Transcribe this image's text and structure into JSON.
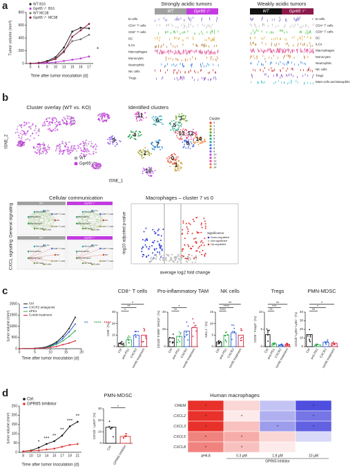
{
  "figure": {
    "panel_labels": [
      "a",
      "b",
      "c",
      "d"
    ],
    "panel_a": {
      "growth": {
        "type": "line",
        "ylabel": "Tumor volume (mm³)",
        "xlabel": "Time after tumor inoculation (d)",
        "categories": [
          "0",
          "6",
          "8",
          "10",
          "13",
          "15",
          "16",
          "17"
        ],
        "ylim": [
          0,
          800
        ],
        "yticks": [
          0,
          200,
          400,
          600,
          800
        ],
        "series": [
          {
            "name": "WT B16",
            "color": "#222222",
            "values": [
              0,
              10,
              40,
              100,
              250,
              500,
              560,
              550
            ]
          },
          {
            "name": "Gpr65⁻/⁻ B16",
            "color": "#c33be0",
            "values": [
              0,
              5,
              10,
              20,
              40,
              60,
              80,
              110
            ]
          },
          {
            "name": "WT MC38",
            "color": "#777777",
            "values": [
              0,
              10,
              30,
              80,
              200,
              350,
              380,
              450
            ]
          },
          {
            "name": "Gpr65⁻/⁻ MC38",
            "color": "#8b1a4a",
            "values": [
              0,
              10,
              30,
              70,
              180,
              420,
              520,
              620
            ]
          }
        ],
        "annotation": "*"
      },
      "heatmap": {
        "groups": [
          "Strongly acidic tumors",
          "Weakly acidic tumors"
        ],
        "columns": [
          "WT",
          "Gpr65⁻/⁻",
          "WT",
          "Gpr65⁻/⁻"
        ],
        "column_colors": [
          "#a0a0a0",
          "#c33be0",
          "#111111",
          "#8b1a4a"
        ],
        "rows_left": [
          "B cells",
          "CD4⁺ T cells",
          "CD8⁺ T cells",
          "DC",
          "ILCs",
          "Macrophages",
          "Monocytes",
          "Neutrophils",
          "NK cells",
          "Tregs"
        ],
        "rows_right": [
          "B cells",
          "CD4⁺ T cells",
          "CD8⁺ T cells",
          "DC",
          "ILCs",
          "Macrophages",
          "Monocytes",
          "Neutrophils",
          "NK cells",
          "Tregs",
          "Mast cells and Basophils"
        ],
        "row_colors": [
          "#7b61c7",
          "#b0b0b0",
          "#3fbf3f",
          "#e0a020",
          "#b07020",
          "#e05a9a",
          "#d08040",
          "#2a7ad0",
          "#c02020",
          "#8040c0",
          "#40c0d0"
        ]
      }
    },
    "panel_b": {
      "overlay_title": "Cluster overlay (WT vs. KO)",
      "clusters_title": "Identified clusters",
      "ylabel": "tSNE_2",
      "xlabel": "tSNE_1",
      "legend": [
        "WT",
        "Gpr65⁻/⁻"
      ],
      "legend_colors": [
        "#aaaaaa",
        "#c33be0"
      ],
      "cluster_legend_title": "Cluster",
      "clusters": [
        "0",
        "1",
        "2",
        "3",
        "4",
        "5",
        "6",
        "7",
        "8",
        "9",
        "10",
        "11",
        "12",
        "13",
        "14"
      ],
      "cluster_colors": [
        "#e8412a",
        "#c79a2a",
        "#9a9a1a",
        "#5da82a",
        "#2aa84a",
        "#2aa88a",
        "#2aa8b8",
        "#2a8ad8",
        "#4a6ae8",
        "#8a5ae8",
        "#b84ae8",
        "#d84ac8",
        "#e84a9a",
        "#e8646a",
        "#f08a3a"
      ],
      "communication": {
        "title": "Cellular communication",
        "rows": [
          "General signaling",
          "CXCL signaling"
        ],
        "columns": [
          "WT",
          "Gpr65⁻/⁻"
        ],
        "nodes": [
          "DC",
          "CD4⁺ T cells",
          "B cells",
          "NK cells",
          "Macrophages",
          "PMN-MDSC",
          "Monocytes",
          "ILCs",
          "CD8⁺ T cells"
        ]
      },
      "volcano": {
        "title": "Macrophages – cluster 7 vs 0",
        "ylabel": "-log10 adjusted p-value",
        "xlabel": "average log2 fold change",
        "legend_title": "Significance",
        "legend": [
          "Down-regulated",
          "Not significant",
          "Up-regulated"
        ],
        "legend_colors": [
          "#2a3ad8",
          "#bbbbbb",
          "#e0302a"
        ]
      }
    },
    "panel_c": {
      "growth": {
        "type": "line",
        "ylabel": "tumor volume (mm³)",
        "xlabel": "Time after tumor inoculation (d)",
        "x": [
          0,
          5,
          8,
          10,
          12,
          14,
          16,
          18
        ],
        "xlim": [
          0,
          20
        ],
        "xticks": [
          0,
          5,
          10,
          15,
          20
        ],
        "ylim": [
          0,
          2000
        ],
        "yticks": [
          0,
          500,
          1000,
          1500,
          2000
        ],
        "series": [
          {
            "name": "Ctrl",
            "color": "#111111",
            "values": [
              0,
              20,
              60,
              150,
              300,
              550,
              900,
              1400
            ]
          },
          {
            "name": "CXCR2 antagonist",
            "color": "#2a5ad8",
            "values": [
              0,
              20,
              50,
              120,
              250,
              450,
              750,
              1100
            ]
          },
          {
            "name": "αPD1",
            "color": "#2aa84a",
            "values": [
              0,
              20,
              40,
              100,
              200,
              350,
              550,
              800
            ]
          },
          {
            "name": "Combi treatment",
            "color": "#d8203a",
            "values": [
              0,
              15,
              30,
              60,
              100,
              180,
              250,
              350
            ]
          }
        ],
        "annotations": [
          "**",
          "****",
          "****"
        ]
      },
      "bars": [
        {
          "title": "CD8⁺ T cells",
          "ylabel": "CD8⁺ (%)",
          "categories": [
            "Ctrl",
            "anti-PD1",
            "CXCR2",
            "combi treatment"
          ],
          "colors": [
            "#111111",
            "#2aa84a",
            "#2a5ad8",
            "#d8203a"
          ],
          "values": [
            3,
            6,
            10,
            10
          ],
          "ylim": [
            0,
            30
          ],
          "yticks": [
            0,
            10,
            20,
            30
          ],
          "annotations": [
            "*",
            "**",
            "*"
          ]
        },
        {
          "title": "Pro-inflammatory TAM",
          "ylabel": "CD11b⁺F4/80⁺ MHCII⁺ (%)",
          "categories": [
            "Ctrl",
            "anti-PD1",
            "CXCR2",
            "combi treatment"
          ],
          "colors": [
            "#111111",
            "#2aa84a",
            "#2a5ad8",
            "#d8203a"
          ],
          "values": [
            10,
            12,
            18,
            22
          ],
          "ylim": [
            0,
            40
          ],
          "yticks": [
            0,
            20,
            40
          ],
          "annotations": [
            "**",
            "*"
          ]
        },
        {
          "title": "NK cells",
          "ylabel": "NK1.1⁺ (%)",
          "categories": [
            "Ctrl",
            "anti-PD1",
            "CXCR2",
            "combi treatment"
          ],
          "colors": [
            "#111111",
            "#2aa84a",
            "#2a5ad8",
            "#d8203a"
          ],
          "values": [
            2,
            5,
            6,
            5
          ],
          "ylim": [
            0,
            15
          ],
          "yticks": [
            0,
            5,
            10,
            15
          ],
          "annotations": [
            "****",
            "****",
            "**"
          ]
        },
        {
          "title": "Tregs",
          "ylabel": "CD25⁺ Foxp3⁺ (%)",
          "categories": [
            "Ctrl",
            "anti-PD1",
            "CXCR2",
            "combi treatment"
          ],
          "colors": [
            "#111111",
            "#2aa84a",
            "#2a5ad8",
            "#d8203a"
          ],
          "values": [
            3.5,
            0.8,
            0.5,
            0.7
          ],
          "ylim": [
            0,
            10
          ],
          "yticks": [
            0,
            5,
            10
          ],
          "annotations": [
            "**",
            "***",
            "**"
          ]
        },
        {
          "title": "PMN-MDSC",
          "ylabel": "CD11b⁺Ly6G⁺Ly6C⁺ (%)",
          "categories": [
            "Ctrl",
            "anti-PD1",
            "CXCR2",
            "combi treatment"
          ],
          "colors": [
            "#111111",
            "#2aa84a",
            "#2a5ad8",
            "#d8203a"
          ],
          "values": [
            14,
            2,
            5,
            4
          ],
          "ylim": [
            0,
            40
          ],
          "yticks": [
            0,
            10,
            20,
            30,
            40
          ],
          "annotations": [
            "**",
            "*",
            "*"
          ]
        }
      ]
    },
    "panel_d": {
      "growth": {
        "type": "line",
        "ylabel": "tumor volume (mm³)",
        "xlabel": "Time after tumor inoculation (d)",
        "categories": [
          "8",
          "10",
          "13",
          "14",
          "15",
          "17",
          "19",
          "21"
        ],
        "ylim": [
          0,
          250
        ],
        "yticks": [
          0,
          50,
          100,
          150,
          200,
          250
        ],
        "series": [
          {
            "name": "Ctrl.",
            "color": "#111111",
            "values": [
              5,
              10,
              25,
              45,
              60,
              90,
              140,
              165
            ]
          },
          {
            "name": "GPR65 Inhibitor",
            "color": "#e0302a",
            "values": [
              5,
              8,
              10,
              15,
              20,
              30,
              40,
              45
            ]
          }
        ],
        "annotations": [
          "*",
          "***",
          "**",
          "**",
          "***",
          "**"
        ]
      },
      "bar": {
        "title": "PMN-MDSC",
        "ylabel": "CD11b⁺ Ly6Gʰⁱ (%)",
        "categories": [
          "Ctrl.",
          "GPR65 Inhibitor"
        ],
        "colors": [
          "#111111",
          "#e0302a"
        ],
        "values": [
          14,
          6
        ],
        "ylim": [
          0,
          30
        ],
        "yticks": [
          0,
          10,
          20,
          30
        ],
        "annotations": [
          "*"
        ]
      },
      "heatmap": {
        "title": "Human macrophages",
        "rows": [
          "CREM",
          "CXCL2",
          "CXCL3",
          "CXCL5",
          "CXCL8"
        ],
        "columns": [
          "pH6.8",
          "0.3 µM",
          "1.8 µM",
          "10 µM"
        ],
        "column_group": "GPR65 Inhibitor",
        "values": [
          [
            1,
            0.2,
            -0.3,
            -0.9
          ],
          [
            1,
            0.1,
            -0.4,
            -0.7
          ],
          [
            1,
            0.3,
            -0.5,
            -0.8
          ],
          [
            0.6,
            0.4,
            0.2,
            -0.2
          ],
          [
            0.6,
            0.3,
            0.1,
            0
          ]
        ],
        "color_high": "#e8312a",
        "color_low": "#3a3adb",
        "stars": [
          [
            "*",
            null,
            null,
            "*"
          ],
          [
            "*",
            "*",
            null,
            "*"
          ],
          [
            "*",
            null,
            "*",
            "*"
          ],
          [
            "*",
            "*",
            null,
            null
          ],
          [
            "*",
            "*",
            null,
            null
          ]
        ]
      }
    }
  }
}
